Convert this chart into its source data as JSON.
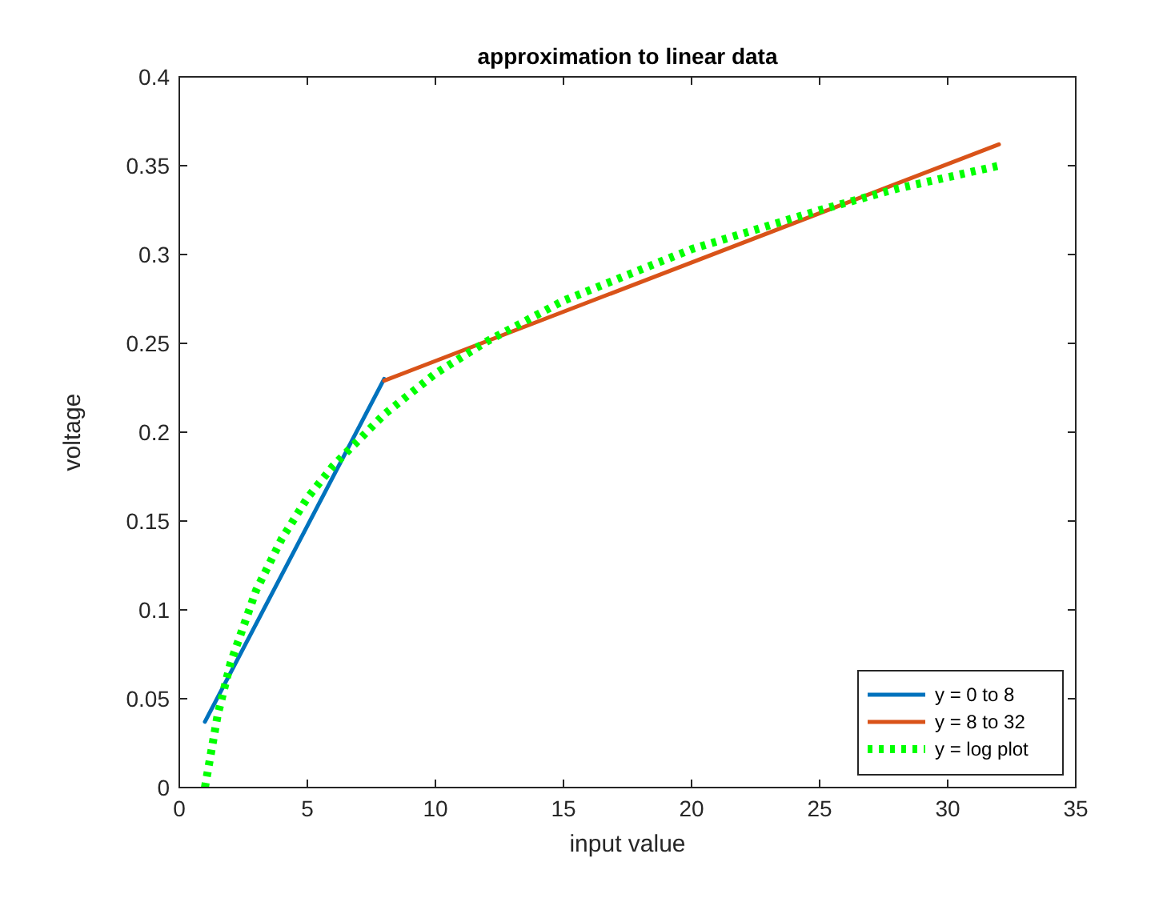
{
  "chart_data": {
    "type": "line",
    "title": "approximation to linear data",
    "xlabel": "input value",
    "ylabel": "voltage",
    "xlim": [
      0,
      35
    ],
    "xticks": [
      0,
      5,
      10,
      15,
      20,
      25,
      30,
      35
    ],
    "ylim": [
      0,
      0.4
    ],
    "yticks": [
      0,
      0.05,
      0.1,
      0.15,
      0.2,
      0.25,
      0.3,
      0.35,
      0.4
    ],
    "grid": false,
    "legend": "bottom right",
    "marker": "none",
    "series": [
      {
        "name": "y = 0 to 8",
        "color": "#0072bd",
        "x": [
          1,
          8
        ],
        "values": [
          0.037,
          0.23
        ],
        "line_style": "solid"
      },
      {
        "name": "y = 8 to 32",
        "color": "#d95319",
        "x": [
          8,
          32
        ],
        "values": [
          0.229,
          0.362
        ],
        "line_style": "solid"
      },
      {
        "name": "y = log plot",
        "color": "#00ff00",
        "x": [
          1,
          1.5,
          2,
          3,
          4,
          5,
          6,
          8,
          10,
          12,
          15,
          20,
          25,
          28,
          32
        ],
        "values": [
          0,
          0.041,
          0.07,
          0.111,
          0.14,
          0.163,
          0.181,
          0.21,
          0.233,
          0.251,
          0.274,
          0.303,
          0.325,
          0.337,
          0.35
        ],
        "line_style": "dotted"
      }
    ]
  }
}
